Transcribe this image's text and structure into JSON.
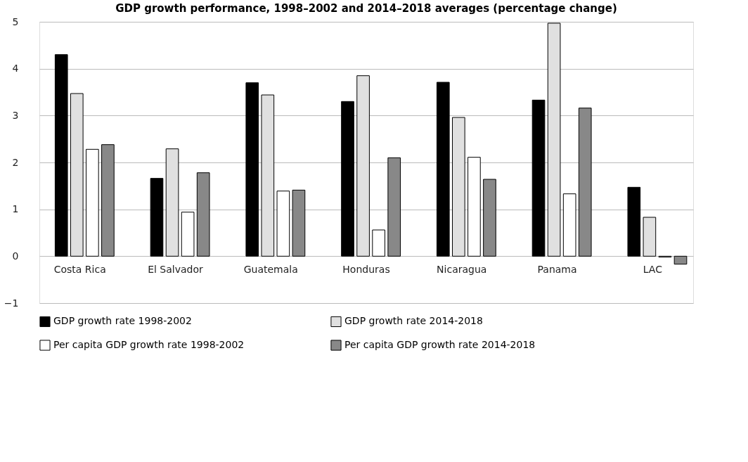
{
  "chart_data": {
    "type": "bar",
    "title": "GDP growth performance, 1998–2002 and 2014–2018 averages (percentage change)",
    "categories": [
      "Costa Rica",
      "El Salvador",
      "Guatemala",
      "Honduras",
      "Nicaragua",
      "Panama",
      "LAC"
    ],
    "series": [
      {
        "name": "GDP growth rate 1998-2002",
        "color": "#000000",
        "values": [
          4.3,
          1.66,
          3.7,
          3.3,
          3.71,
          3.33,
          1.47
        ]
      },
      {
        "name": "GDP growth rate 2014-2018",
        "color": "#e0e0e0",
        "values": [
          3.47,
          2.29,
          3.44,
          3.85,
          2.96,
          4.97,
          0.83
        ]
      },
      {
        "name": "Per capita GDP growth rate 1998-2002",
        "color": "#ffffff",
        "values": [
          2.28,
          0.94,
          1.39,
          0.56,
          2.11,
          1.33,
          -0.02
        ]
      },
      {
        "name": "Per capita GDP growth rate 2014-2018",
        "color": "#888888",
        "values": [
          2.38,
          1.78,
          1.41,
          2.1,
          1.64,
          3.16,
          -0.17
        ]
      }
    ],
    "ylim": [
      -1,
      5
    ],
    "yticks": [
      -1,
      0,
      1,
      2,
      3,
      4,
      5
    ],
    "grid": "y",
    "legend": "bottom"
  }
}
